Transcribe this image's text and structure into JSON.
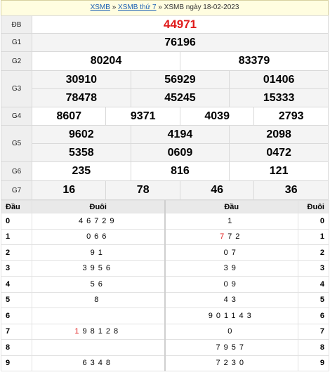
{
  "breadcrumb": {
    "link1": "XSMB",
    "sep": "»",
    "link2": "XSMB thứ 7",
    "current": "XSMB ngày 18-02-2023"
  },
  "prizes": {
    "db": {
      "label": "ĐB",
      "values": [
        "44971"
      ]
    },
    "g1": {
      "label": "G1",
      "values": [
        "76196"
      ]
    },
    "g2": {
      "label": "G2",
      "values": [
        "80204",
        "83379"
      ]
    },
    "g3": {
      "label": "G3",
      "values": [
        "30910",
        "56929",
        "01406",
        "78478",
        "45245",
        "15333"
      ]
    },
    "g4": {
      "label": "G4",
      "values": [
        "8607",
        "9371",
        "4039",
        "2793"
      ]
    },
    "g5": {
      "label": "G5",
      "values": [
        "9602",
        "4194",
        "2098",
        "5358",
        "0609",
        "0472"
      ]
    },
    "g6": {
      "label": "G6",
      "values": [
        "235",
        "816",
        "121"
      ]
    },
    "g7": {
      "label": "G7",
      "values": [
        "16",
        "78",
        "46",
        "36"
      ]
    }
  },
  "loto": {
    "headers": {
      "dau_left": "Đầu",
      "duoi_left": "Đuôi",
      "dau_right": "Đầu",
      "duoi_right": "Đuôi"
    },
    "rows": [
      {
        "k": "0",
        "left_hl": "",
        "left": "46729",
        "right_hl": "",
        "right": "1"
      },
      {
        "k": "1",
        "left_hl": "",
        "left": "066",
        "right_hl": "7",
        "right": "72"
      },
      {
        "k": "2",
        "left_hl": "",
        "left": "91",
        "right_hl": "",
        "right": "07"
      },
      {
        "k": "3",
        "left_hl": "",
        "left": "3956",
        "right_hl": "",
        "right": "39"
      },
      {
        "k": "4",
        "left_hl": "",
        "left": "56",
        "right_hl": "",
        "right": "09"
      },
      {
        "k": "5",
        "left_hl": "",
        "left": "8",
        "right_hl": "",
        "right": "43"
      },
      {
        "k": "6",
        "left_hl": "",
        "left": "",
        "right_hl": "",
        "right": "901143"
      },
      {
        "k": "7",
        "left_hl": "1",
        "left": "98128",
        "right_hl": "",
        "right": "0"
      },
      {
        "k": "8",
        "left_hl": "",
        "left": "",
        "right_hl": "",
        "right": "7957"
      },
      {
        "k": "9",
        "left_hl": "",
        "left": "6348",
        "right_hl": "",
        "right": "7230"
      }
    ]
  },
  "colors": {
    "special_prize": "#e01b1b",
    "highlight_digit": "#e01b1b",
    "link": "#1a5fb4"
  }
}
